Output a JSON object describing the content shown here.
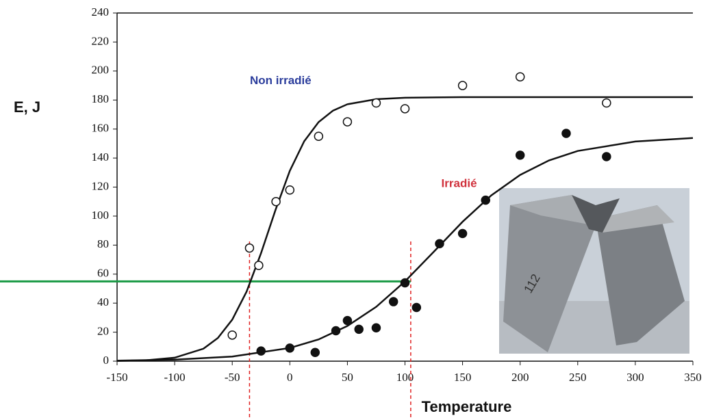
{
  "chart_data": {
    "type": "scatter",
    "y_label": "E, J",
    "x_label": "Temperature",
    "xlim": [
      -150,
      350
    ],
    "ylim": [
      0,
      240
    ],
    "xticks": [
      -150,
      -100,
      -50,
      0,
      50,
      100,
      150,
      200,
      250,
      300,
      350
    ],
    "yticks": [
      0,
      20,
      40,
      60,
      80,
      100,
      120,
      140,
      160,
      180,
      200,
      220,
      240
    ],
    "series": [
      {
        "name": "Non irradié",
        "color": "#2b3d9c",
        "marker_color": "#111111",
        "filled": false,
        "x": [
          -50,
          -35,
          -27,
          -12,
          0,
          25,
          50,
          75,
          100,
          150,
          200,
          275
        ],
        "values": [
          18,
          78,
          66,
          110,
          118,
          155,
          165,
          178,
          174,
          190,
          196,
          178
        ],
        "curve_x": [
          -150,
          -125,
          -100,
          -75,
          -62.5,
          -50,
          -37.5,
          -25,
          -12.5,
          0,
          12.5,
          25,
          37.5,
          50,
          75,
          100,
          150,
          200,
          250,
          300,
          350
        ],
        "curve_values": [
          0.2,
          0.6,
          2.4,
          8.6,
          16.0,
          28.6,
          48.0,
          74.5,
          104.1,
          131.2,
          151.6,
          164.8,
          172.7,
          177.1,
          180.6,
          181.6,
          182,
          182,
          182,
          182,
          182
        ]
      },
      {
        "name": "Irradié",
        "color": "#d0303b",
        "marker_color": "#111111",
        "filled": true,
        "x": [
          -25,
          0,
          22,
          40,
          50,
          60,
          75,
          90,
          100,
          110,
          130,
          150,
          170,
          200,
          240,
          275
        ],
        "values": [
          7,
          9,
          6,
          21,
          28,
          22,
          23,
          41,
          54,
          37,
          81,
          88,
          111,
          142,
          157,
          141
        ],
        "curve_x": [
          -150,
          -100,
          -50,
          0,
          25,
          50,
          75,
          100,
          125,
          150,
          175,
          200,
          225,
          250,
          300,
          350
        ],
        "curve_values": [
          0.4,
          1.1,
          3.2,
          9.1,
          15.0,
          24.3,
          37.5,
          55.0,
          75.4,
          96.1,
          114.3,
          128.4,
          138.4,
          144.9,
          151.4,
          153.8
        ]
      }
    ],
    "reference_hline": 55,
    "reference_hline_color": "#1a9a45",
    "reference_vlines": [
      -35,
      105
    ],
    "reference_vline_color": "#e02020"
  }
}
